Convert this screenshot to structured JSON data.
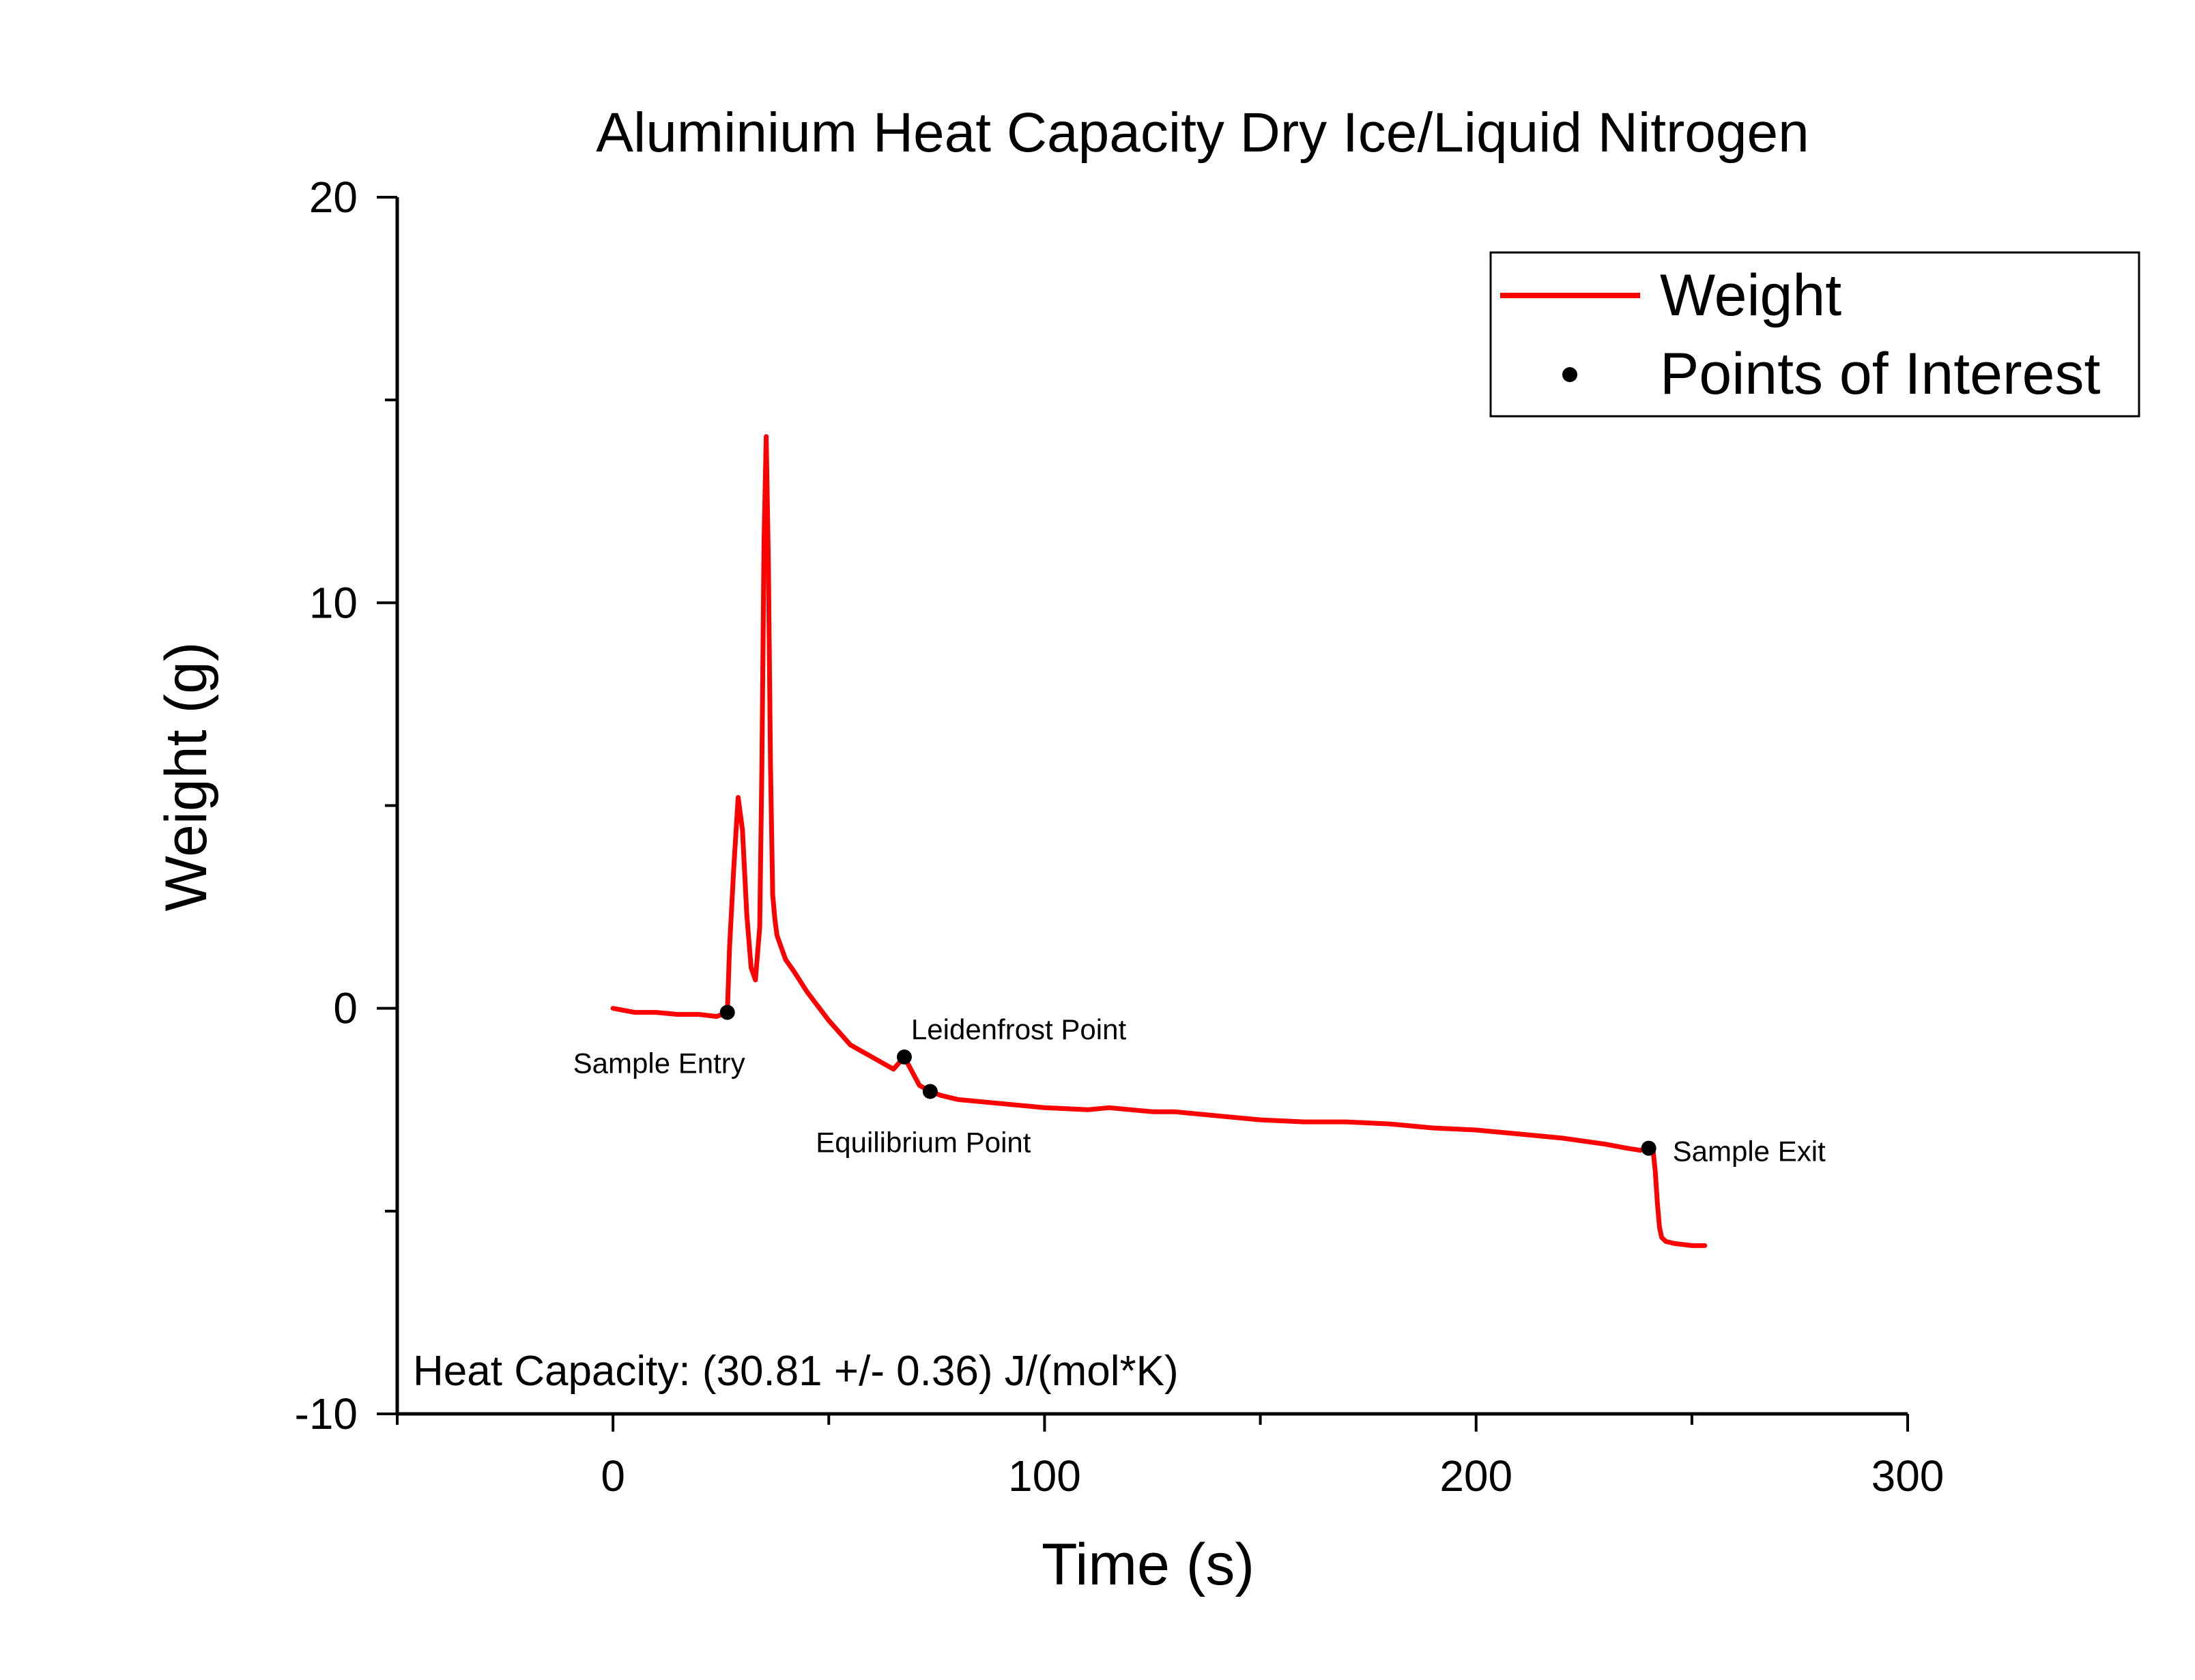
{
  "chart_data": {
    "type": "line",
    "title": "Aluminium Heat Capacity Dry Ice/Liquid Nitrogen",
    "xlabel": "Time (s)",
    "ylabel": "Weight (g)",
    "xlim": [
      -50,
      300
    ],
    "ylim": [
      -10,
      20
    ],
    "x_ticks": [
      {
        "value": 0,
        "label": "0"
      },
      {
        "value": 100,
        "label": "100"
      },
      {
        "value": 200,
        "label": "200"
      },
      {
        "value": 300,
        "label": "300"
      }
    ],
    "x_minor_ticks": [
      -50,
      50,
      150,
      250
    ],
    "y_ticks": [
      {
        "value": -10,
        "label": "-10"
      },
      {
        "value": 0,
        "label": "0"
      },
      {
        "value": 10,
        "label": "10"
      },
      {
        "value": 20,
        "label": "20"
      }
    ],
    "y_minor_ticks": [
      -5,
      5,
      15
    ],
    "grid": false,
    "legend_position": "top-right",
    "series": [
      {
        "name": "Weight",
        "color": "#ff0000",
        "kind": "line",
        "x": [
          0,
          5,
          10,
          15,
          20,
          24,
          26.5,
          27,
          28,
          29,
          30,
          31,
          32,
          33,
          34,
          34.5,
          35,
          35.5,
          36,
          36.5,
          37,
          37.5,
          38,
          39,
          40,
          42,
          45,
          50,
          55,
          60,
          65,
          67.5,
          69,
          71,
          73.5,
          76,
          80,
          90,
          100,
          110,
          115,
          120,
          125,
          130,
          140,
          150,
          160,
          170,
          180,
          190,
          200,
          210,
          220,
          230,
          235,
          238,
          240,
          241,
          241.5,
          242,
          242.5,
          243,
          244,
          246,
          250,
          253
        ],
        "y": [
          0,
          -0.1,
          -0.1,
          -0.15,
          -0.15,
          -0.2,
          -0.1,
          1.5,
          3.5,
          5.2,
          4.4,
          2.3,
          1.0,
          0.7,
          2.0,
          6.0,
          11.5,
          14.1,
          11.0,
          6.0,
          2.8,
          2.2,
          1.8,
          1.5,
          1.2,
          0.9,
          0.4,
          -0.3,
          -0.9,
          -1.2,
          -1.5,
          -1.2,
          -1.5,
          -1.9,
          -2.05,
          -2.15,
          -2.25,
          -2.35,
          -2.45,
          -2.5,
          -2.45,
          -2.5,
          -2.55,
          -2.55,
          -2.65,
          -2.75,
          -2.8,
          -2.8,
          -2.85,
          -2.95,
          -3.0,
          -3.1,
          -3.2,
          -3.35,
          -3.45,
          -3.5,
          -3.45,
          -3.5,
          -4.0,
          -4.8,
          -5.4,
          -5.65,
          -5.75,
          -5.8,
          -5.85,
          -5.85
        ]
      },
      {
        "name": "Points of Interest",
        "color": "#000000",
        "kind": "scatter",
        "points": [
          {
            "x": 26.5,
            "y": -0.1,
            "label": "Sample Entry",
            "anchor": "below-left"
          },
          {
            "x": 67.5,
            "y": -1.2,
            "label": "Leidenfrost Point",
            "anchor": "above-right"
          },
          {
            "x": 73.5,
            "y": -2.05,
            "label": "Equilibrium Point",
            "anchor": "below-left"
          },
          {
            "x": 240,
            "y": -3.45,
            "label": "Sample Exit",
            "anchor": "right"
          }
        ]
      }
    ],
    "annotation": "Heat Capacity: (30.81 +/- 0.36) J/(mol*K)"
  }
}
